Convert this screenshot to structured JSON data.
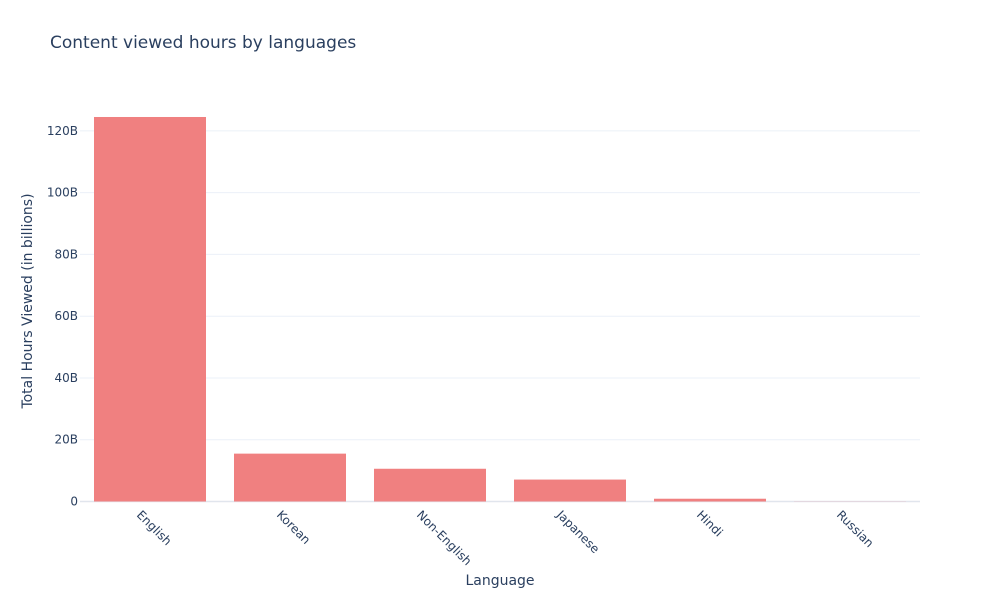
{
  "chart_data": {
    "type": "bar",
    "title": "Content viewed hours by languages",
    "xlabel": "Language",
    "ylabel": "Total Hours Viewed (in billions)",
    "categories": [
      "English",
      "Korean",
      "Non-English",
      "Japanese",
      "Hindi",
      "Russian"
    ],
    "values": [
      124.5,
      15.5,
      10.6,
      7.1,
      0.9,
      0.04
    ],
    "ylim": [
      0,
      130
    ],
    "yticks": [
      0,
      20,
      40,
      60,
      80,
      100,
      120
    ],
    "ytick_labels": [
      "0",
      "20B",
      "40B",
      "60B",
      "80B",
      "100B",
      "120B"
    ],
    "grid": true,
    "bar_color": "#f08080",
    "gridline_color": "#ebf0f8",
    "text_color": "#2a3f5f"
  }
}
